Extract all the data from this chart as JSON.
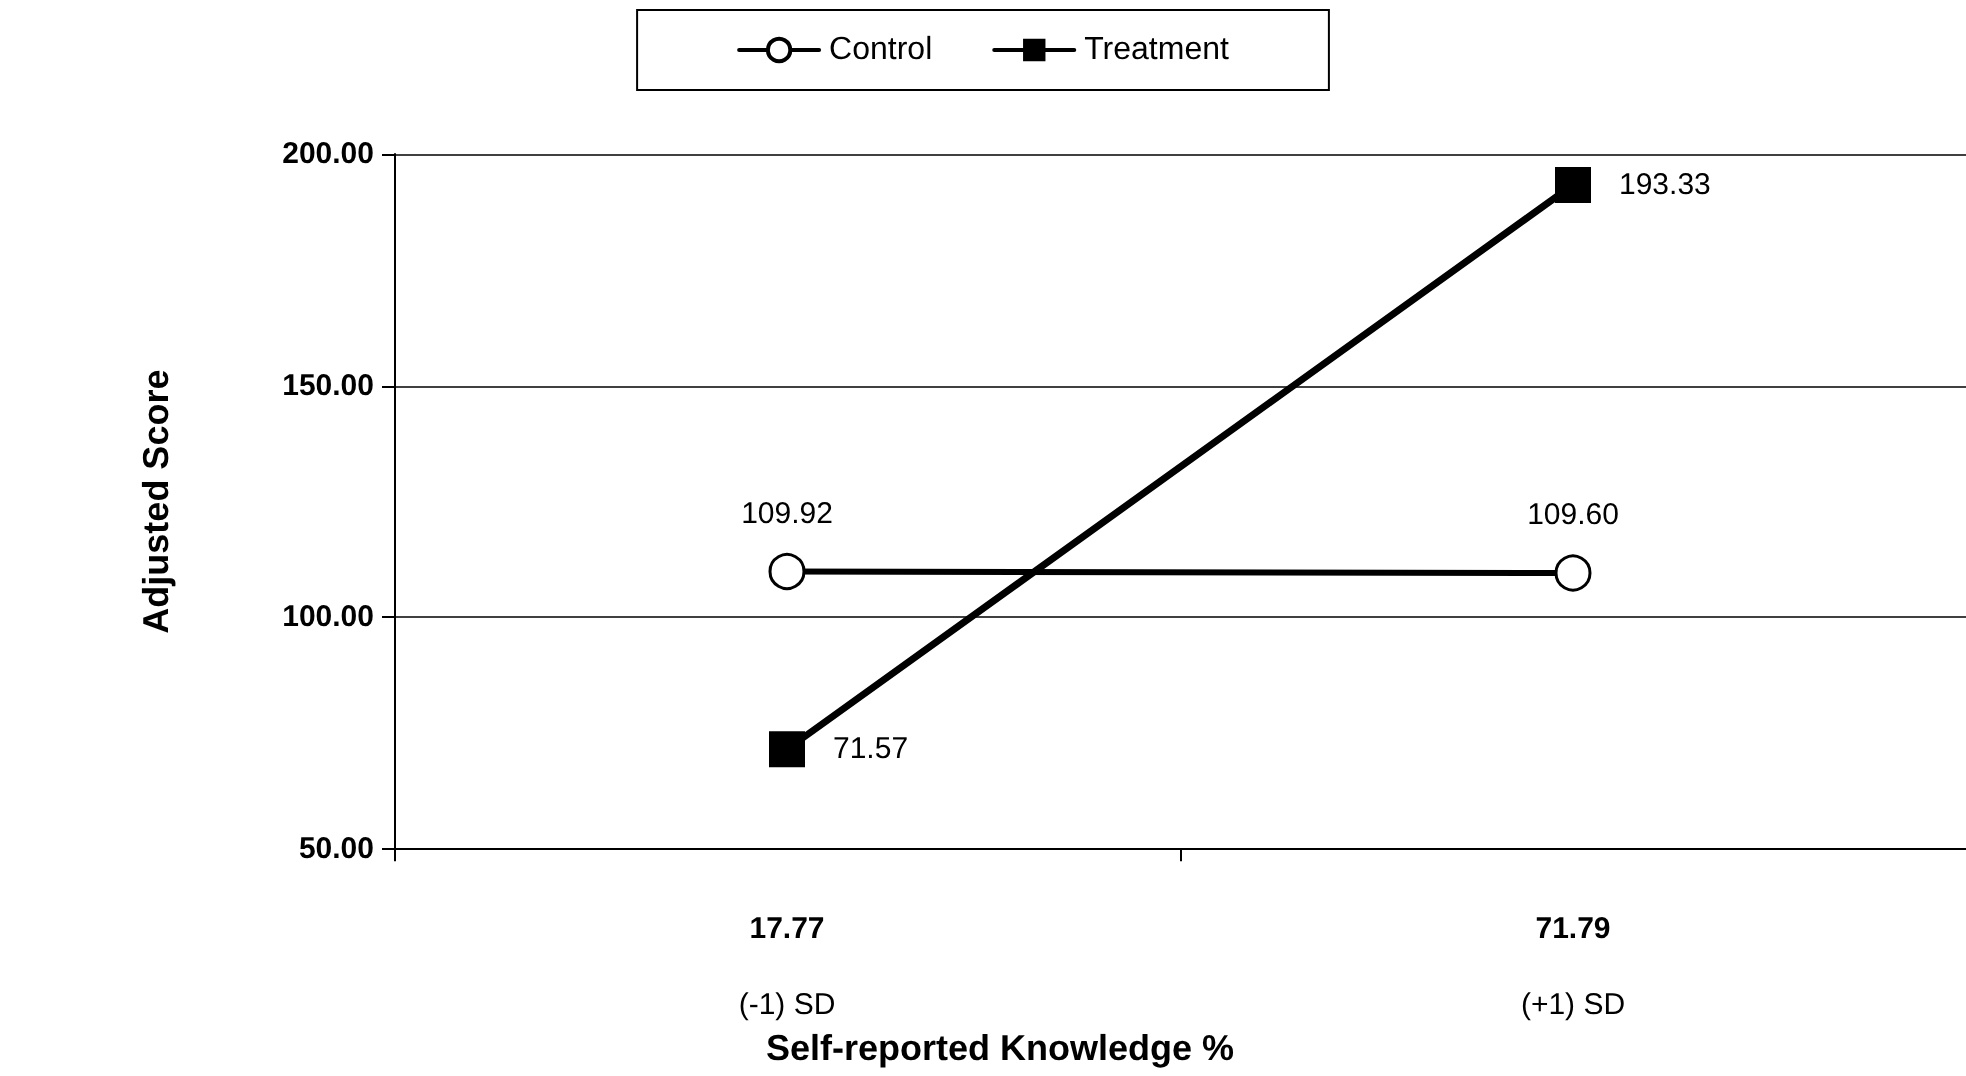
{
  "chart_data": {
    "type": "line",
    "xlabel": "Self-reported Knowledge %",
    "ylabel": "Adjusted Score",
    "categories": [
      "17.77\n(-1) SD",
      "71.79\n(+1) SD"
    ],
    "series": [
      {
        "name": "Control",
        "color": "#000000",
        "marker": "circle",
        "values": [
          109.92,
          109.6
        ],
        "value_labels": [
          "109.92",
          "109.60"
        ]
      },
      {
        "name": "Treatment",
        "color": "#000000",
        "marker": "square",
        "values": [
          71.57,
          193.33
        ],
        "value_labels": [
          "71.57",
          "193.33"
        ]
      }
    ],
    "ylim": [
      50,
      200
    ],
    "yticks": [
      {
        "value": 50,
        "label": "50.00"
      },
      {
        "value": 100,
        "label": "100.00"
      },
      {
        "value": 150,
        "label": "150.00"
      },
      {
        "value": 200,
        "label": "200.00"
      }
    ],
    "grid": "y",
    "legend": "top",
    "line_style": "solid"
  }
}
